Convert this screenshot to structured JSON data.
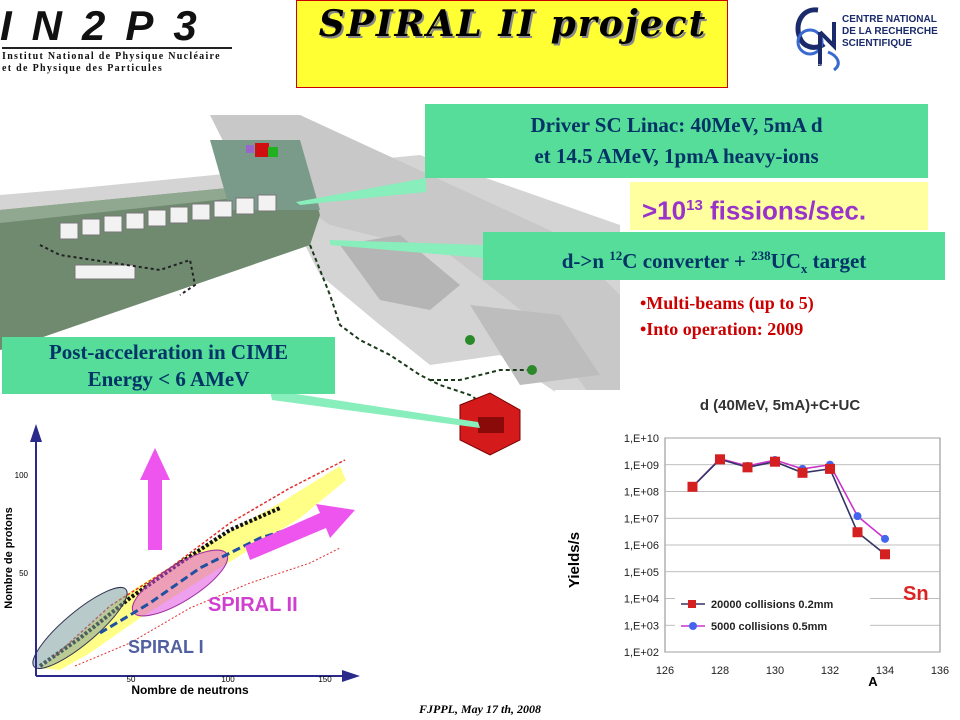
{
  "header": {
    "in2p3_logo": "IN2P3",
    "in2p3_line1": "Institut National de Physique Nucléaire",
    "in2p3_line2": "et de Physique des Particules",
    "title": "SPIRAL II  project",
    "cnrs_logo": "CNRS",
    "cnrs_line1": "CENTRE NATIONAL",
    "cnrs_line2": "DE LA RECHERCHE",
    "cnrs_line3": "SCIENTIFIQUE"
  },
  "labels": {
    "driver_line1": "Driver SC Linac: 40MeV, 5mA d",
    "driver_line2": "et 14.5 AMeV, 1pmA heavy-ions",
    "fissions_base": ">10",
    "fissions_exp": "13",
    "fissions_rest": " fissions/sec.",
    "converter_a": "d->n ",
    "converter_sup1": "12",
    "converter_b": "C converter + ",
    "converter_sup2": "238",
    "converter_c": "UC",
    "converter_sub": "x",
    "converter_d": " target",
    "bullet1": "•Multi-beams (up to 5)",
    "bullet2": "•Into operation: 2009",
    "postacc_line1": "Post-acceleration in CIME",
    "postacc_line2": "Energy < 6 AMeV"
  },
  "nuclide_chart": {
    "ylabel": "Nombre de protons",
    "xlabel": "Nombre de neutrons",
    "y_ticks": [
      "100",
      "50"
    ],
    "x_ticks": [
      "50",
      "100",
      "150"
    ],
    "spiral2_label": "SPIRAL II",
    "spiral1_label": "SPIRAL I"
  },
  "chart_data": {
    "type": "line",
    "title": "d  (40MeV,  5mA)+C+UC",
    "xlabel": "A",
    "ylabel": "Yields/s",
    "yscale": "log",
    "x_ticks": [
      "126",
      "128",
      "130",
      "132",
      "134",
      "136"
    ],
    "y_ticks": [
      "1,E+02",
      "1,E+03",
      "1,E+04",
      "1,E+05",
      "1,E+06",
      "1,E+07",
      "1,E+08",
      "1,E+09",
      "1,E+10"
    ],
    "xlim": [
      126,
      136
    ],
    "ylim": [
      100,
      10000000000
    ],
    "annotation": "Sn",
    "legend_position": "bottom-left",
    "x": [
      127,
      128,
      129,
      130,
      131,
      132,
      133,
      134
    ],
    "series": [
      {
        "name": "20000  collisions  0.2mm",
        "color": "#d42020",
        "marker": "square",
        "values": [
          150000000,
          1600000000,
          800000000,
          1300000000,
          500000000,
          700000000,
          3000000,
          450000
        ]
      },
      {
        "name": "5000  collisions  0.5mm",
        "color": "#4466ee",
        "marker": "circle",
        "values": [
          150000000,
          1700000000,
          900000000,
          1500000000,
          700000000,
          1000000000,
          12000000,
          1700000
        ]
      }
    ]
  },
  "footer": "FJPPL, May 17 th, 2008"
}
